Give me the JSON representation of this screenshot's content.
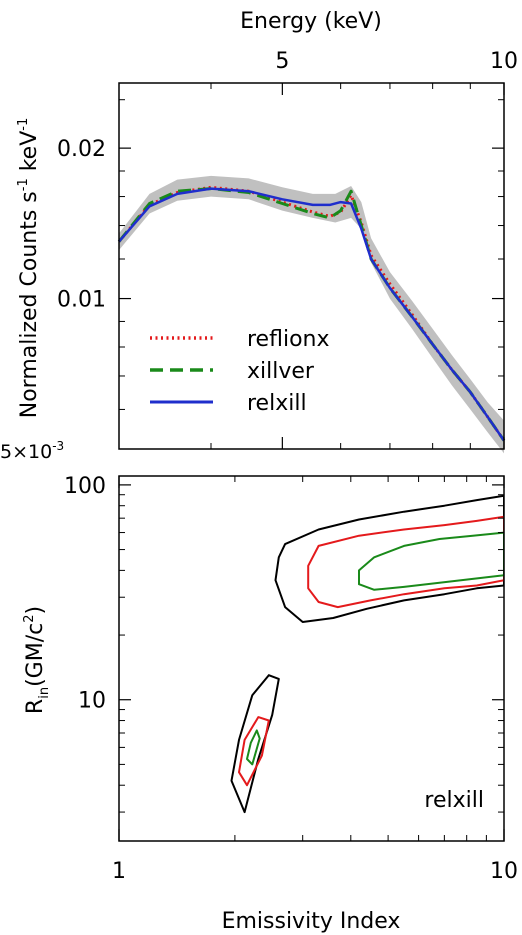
{
  "chart_data": [
    {
      "type": "line",
      "title": "",
      "xlabel": "Energy (keV)",
      "ylabel": "Normalized Counts s",
      "ylabel_sup1": "-1",
      "ylabel_mid": " keV",
      "ylabel_sup2": "-1",
      "x_scale": "log",
      "y_scale": "log",
      "xlim": [
        3.0,
        10.0
      ],
      "ylim": [
        0.005,
        0.027
      ],
      "x_ticks": [
        {
          "value": 5,
          "label": "5"
        },
        {
          "value": 10,
          "label": "10"
        }
      ],
      "y_ticks": [
        {
          "value": 0.02,
          "label": "0.02"
        },
        {
          "value": 0.01,
          "label": "0.01"
        }
      ],
      "y_bottom_label": "5×10",
      "y_bottom_label_exp": "-3",
      "legend_position": "lower-left",
      "data_band": {
        "color": "#c0c0c0",
        "x": [
          3.0,
          3.3,
          3.6,
          4.0,
          4.5,
          5.0,
          5.5,
          5.9,
          6.2,
          6.4,
          6.6,
          7.0,
          7.5,
          8.0,
          8.5,
          9.0,
          9.5,
          10.0
        ],
        "lower": [
          0.0125,
          0.0148,
          0.0157,
          0.016,
          0.0158,
          0.015,
          0.0145,
          0.0142,
          0.0145,
          0.0138,
          0.0118,
          0.01,
          0.0087,
          0.0076,
          0.0067,
          0.006,
          0.0054,
          0.0049
        ],
        "upper": [
          0.0135,
          0.0162,
          0.0173,
          0.0176,
          0.0174,
          0.0167,
          0.0162,
          0.0162,
          0.0168,
          0.0156,
          0.0132,
          0.0113,
          0.0099,
          0.0087,
          0.0077,
          0.0069,
          0.0062,
          0.0057
        ]
      },
      "series": [
        {
          "name": "reflionx",
          "color": "#e41a1c",
          "style": "dotted",
          "x": [
            3.0,
            3.3,
            3.6,
            4.0,
            4.5,
            5.0,
            5.5,
            5.8,
            6.0,
            6.2,
            6.4,
            6.6,
            7.0,
            7.5,
            8.0,
            8.5,
            9.0,
            9.5,
            10.0
          ],
          "y": [
            0.013,
            0.0154,
            0.0163,
            0.0167,
            0.0164,
            0.0156,
            0.0149,
            0.0146,
            0.0149,
            0.0161,
            0.0142,
            0.0122,
            0.0107,
            0.0093,
            0.0081,
            0.0072,
            0.0065,
            0.0058,
            0.0052
          ]
        },
        {
          "name": "xillver",
          "color": "#1a8a1a",
          "style": "dashed",
          "x": [
            3.0,
            3.3,
            3.6,
            4.0,
            4.5,
            5.0,
            5.5,
            5.8,
            6.0,
            6.2,
            6.4,
            6.6,
            7.0,
            7.5,
            8.0,
            8.5,
            9.0,
            9.5,
            10.0
          ],
          "y": [
            0.013,
            0.0155,
            0.0164,
            0.0166,
            0.0163,
            0.0155,
            0.0148,
            0.0145,
            0.015,
            0.0164,
            0.014,
            0.012,
            0.0105,
            0.0092,
            0.0081,
            0.0072,
            0.0065,
            0.0058,
            0.0052
          ]
        },
        {
          "name": "relxill",
          "color": "#1f2ecc",
          "style": "solid",
          "x": [
            3.0,
            3.3,
            3.6,
            4.0,
            4.5,
            5.0,
            5.5,
            5.8,
            6.0,
            6.2,
            6.4,
            6.6,
            7.0,
            7.5,
            8.0,
            8.5,
            9.0,
            9.5,
            10.0
          ],
          "y": [
            0.013,
            0.0153,
            0.0162,
            0.0166,
            0.0164,
            0.0158,
            0.0154,
            0.0154,
            0.0156,
            0.0155,
            0.0138,
            0.012,
            0.0105,
            0.0092,
            0.0081,
            0.0072,
            0.0065,
            0.0058,
            0.0052
          ]
        }
      ]
    },
    {
      "type": "contour",
      "title": "",
      "xlabel": "Emissivity Index",
      "ylabel": "R",
      "ylabel_sub": "in",
      "ylabel_rest": "(GM/c",
      "ylabel_sup": "2",
      "ylabel_end": ")",
      "annotation": "relxill",
      "x_scale": "log",
      "y_scale": "log",
      "xlim": [
        1,
        10
      ],
      "ylim": [
        2.2,
        110
      ],
      "x_ticks": [
        {
          "value": 1,
          "label": "1"
        },
        {
          "value": 10,
          "label": "10"
        }
      ],
      "y_ticks": [
        {
          "value": 10,
          "label": "10"
        },
        {
          "value": 100,
          "label": "100"
        }
      ],
      "contours": [
        {
          "level": "outer",
          "color": "#000000",
          "points": [
            [
              2.7,
              53
            ],
            [
              3.3,
              62
            ],
            [
              4.2,
              69
            ],
            [
              5.5,
              75
            ],
            [
              7.0,
              80
            ],
            [
              8.5,
              85
            ],
            [
              10.0,
              89
            ],
            [
              10.0,
              34
            ],
            [
              8.5,
              33
            ],
            [
              7.0,
              31
            ],
            [
              5.5,
              29
            ],
            [
              4.4,
              26.5
            ],
            [
              3.6,
              24
            ],
            [
              3.0,
              23
            ],
            [
              2.7,
              27
            ],
            [
              2.55,
              36
            ],
            [
              2.6,
              46
            ]
          ]
        },
        {
          "level": "outer",
          "color": "#000000",
          "points": [
            [
              2.45,
              13
            ],
            [
              2.6,
              12.5
            ],
            [
              2.5,
              8.5
            ],
            [
              2.3,
              5.3
            ],
            [
              2.12,
              3.0
            ],
            [
              1.96,
              4.2
            ],
            [
              2.05,
              6.5
            ],
            [
              2.22,
              10.5
            ]
          ]
        },
        {
          "level": "middle",
          "color": "#e41a1c",
          "points": [
            [
              3.3,
              52
            ],
            [
              4.2,
              58
            ],
            [
              5.5,
              62
            ],
            [
              7.0,
              65
            ],
            [
              8.5,
              68
            ],
            [
              10.0,
              71
            ],
            [
              10.0,
              36
            ],
            [
              8.5,
              34
            ],
            [
              7.0,
              33
            ],
            [
              5.5,
              31
            ],
            [
              4.5,
              29
            ],
            [
              3.7,
              27
            ],
            [
              3.3,
              28.5
            ],
            [
              3.1,
              33
            ],
            [
              3.1,
              42
            ]
          ]
        },
        {
          "level": "middle",
          "color": "#e41a1c",
          "points": [
            [
              2.3,
              8.3
            ],
            [
              2.45,
              8.0
            ],
            [
              2.35,
              5.5
            ],
            [
              2.15,
              4.0
            ],
            [
              2.05,
              4.6
            ],
            [
              2.12,
              6.5
            ]
          ]
        },
        {
          "level": "inner",
          "color": "#1a8a1a",
          "points": [
            [
              4.6,
              46
            ],
            [
              5.5,
              52
            ],
            [
              6.8,
              56
            ],
            [
              8.3,
              58
            ],
            [
              10.0,
              60
            ],
            [
              10.0,
              38
            ],
            [
              8.3,
              36.5
            ],
            [
              6.8,
              35
            ],
            [
              5.5,
              33.5
            ],
            [
              4.6,
              32.5
            ],
            [
              4.2,
              34.5
            ],
            [
              4.2,
              40
            ]
          ]
        },
        {
          "level": "inner",
          "color": "#1a8a1a",
          "points": [
            [
              2.28,
              7.2
            ],
            [
              2.32,
              6.6
            ],
            [
              2.22,
              5.0
            ],
            [
              2.15,
              5.3
            ],
            [
              2.2,
              6.3
            ]
          ]
        }
      ]
    }
  ]
}
